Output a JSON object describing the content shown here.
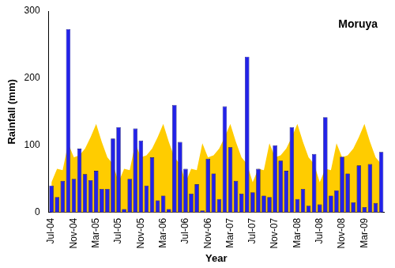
{
  "chart_data": {
    "type": "bar",
    "title": "Moruya",
    "x_label": "Year",
    "y_label": "Rainfall (mm)",
    "categories": [
      "Jul-04",
      null,
      null,
      null,
      "Nov-04",
      null,
      null,
      null,
      "Mar-05",
      null,
      null,
      null,
      "Jul-05",
      null,
      null,
      null,
      "Nov-05",
      null,
      null,
      null,
      "Mar-06",
      null,
      null,
      null,
      "Jul-06",
      null,
      null,
      null,
      "Nov-06",
      null,
      null,
      null,
      "Mar-07",
      null,
      null,
      null,
      "Jul-07",
      null,
      null,
      null,
      "Nov-07",
      null,
      null,
      null,
      "Mar-08",
      null,
      null,
      null,
      "Jul-08",
      null,
      null,
      null,
      "Nov-08",
      null,
      null,
      null,
      "Mar-09",
      null,
      null,
      null
    ],
    "series": [
      {
        "type": "area",
        "color": "#FFCC00",
        "values": [
          45,
          65,
          63,
          103,
          82,
          85,
          95,
          112,
          132,
          105,
          82,
          72,
          45,
          65,
          63,
          103,
          82,
          85,
          95,
          112,
          132,
          105,
          82,
          72,
          45,
          65,
          63,
          103,
          82,
          85,
          95,
          112,
          132,
          105,
          82,
          72,
          45,
          65,
          63,
          103,
          82,
          85,
          95,
          112,
          132,
          105,
          82,
          72,
          45,
          65,
          63,
          103,
          82,
          85,
          95,
          112,
          132,
          105,
          82,
          72
        ]
      },
      {
        "type": "bar",
        "color": "#2222E8",
        "values": [
          40,
          23,
          47,
          273,
          50,
          95,
          57,
          48,
          62,
          35,
          35,
          110,
          127,
          5,
          50,
          125,
          107,
          40,
          82,
          18,
          25,
          5,
          160,
          105,
          65,
          28,
          42,
          3,
          80,
          58,
          20,
          158,
          97,
          47,
          28,
          232,
          30,
          65,
          25,
          23,
          100,
          77,
          62,
          127,
          20,
          35,
          10,
          87,
          12,
          142,
          25,
          33,
          83,
          58,
          15,
          70,
          8,
          72,
          14,
          90
        ]
      }
    ],
    "ylim": [
      0,
      300
    ],
    "yticks": [
      0,
      100,
      200,
      300
    ],
    "grid": false
  }
}
